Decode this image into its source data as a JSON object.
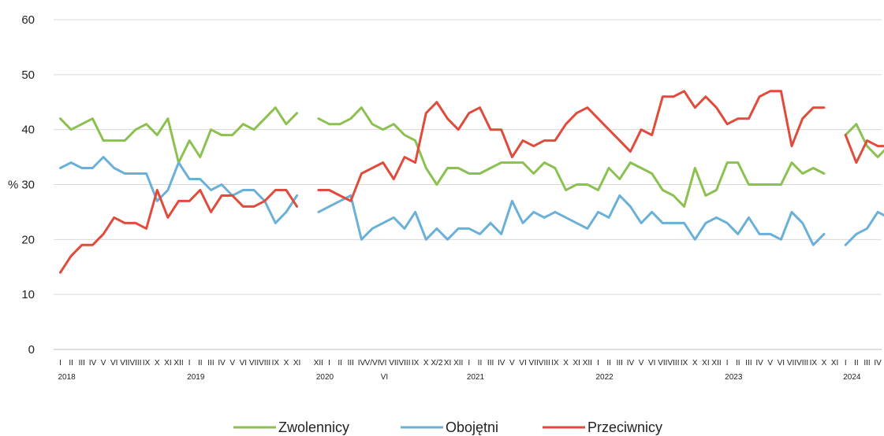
{
  "chart_data": {
    "type": "line",
    "ylabel": "%",
    "ylim": [
      0,
      60
    ],
    "yticks": [
      0,
      10,
      20,
      30,
      40,
      50,
      60
    ],
    "grid": "horizontal",
    "legend_position": "bottom",
    "x_tick_labels": [
      "I",
      "II",
      "III",
      "IV",
      "V",
      "VI",
      "VII",
      "VIII",
      "IX",
      "X",
      "XI",
      "XII",
      "I",
      "II",
      "III",
      "IV",
      "V",
      "VI",
      "VII",
      "VIII",
      "IX",
      "X",
      "XI",
      "XII",
      "I",
      "II",
      "III",
      "IV",
      "V/VI",
      "VI",
      "VII",
      "VIII",
      "IX",
      "X",
      "X/2",
      "XI",
      "XII",
      "I",
      "II",
      "III",
      "IV",
      "V",
      "VI",
      "VII",
      "VIII",
      "IX",
      "X",
      "XI",
      "XII",
      "I",
      "II",
      "III",
      "IV",
      "V",
      "VI",
      "VII",
      "VIII",
      "IX",
      "X",
      "XI",
      "XII",
      "I",
      "II",
      "III",
      "IV",
      "V",
      "VI",
      "VII",
      "VIII",
      "IX",
      "X",
      "XI",
      "I",
      "II",
      "III",
      "IV",
      "V",
      "VI",
      "VII"
    ],
    "x_year_labels": [
      {
        "label": "2018",
        "index": 0
      },
      {
        "label": "2019",
        "index": 12
      },
      {
        "label": "2020",
        "index": 23
      },
      {
        "label": "VI",
        "index": 29
      },
      {
        "label": "2021",
        "index": 37
      },
      {
        "label": "2022",
        "index": 49
      },
      {
        "label": "2023",
        "index": 61
      },
      {
        "label": "2024",
        "index": 72
      }
    ],
    "series": [
      {
        "name": "Zwolennicy",
        "color": "#8cc152",
        "segments": [
          [
            42,
            40,
            41,
            42,
            38,
            38,
            38,
            40,
            41,
            39,
            42,
            34,
            38,
            35,
            40,
            39,
            39,
            41,
            40,
            42,
            44,
            41,
            43
          ],
          [
            42,
            41,
            41,
            42,
            44,
            41,
            40,
            41,
            39,
            38,
            33,
            30,
            33,
            33,
            32,
            32,
            33,
            34,
            34,
            34,
            32,
            34,
            33,
            29,
            30,
            30,
            29,
            33,
            31,
            34,
            33,
            32,
            29,
            28,
            26,
            33,
            28,
            29,
            34,
            34,
            30,
            30,
            30,
            30,
            34,
            32,
            33,
            32
          ],
          [
            39,
            41,
            37,
            35,
            37,
            36,
            33
          ]
        ]
      },
      {
        "name": "Obojętni",
        "color": "#6ab0d8",
        "segments": [
          [
            33,
            34,
            33,
            33,
            35,
            33,
            32,
            32,
            32,
            27,
            29,
            34,
            31,
            31,
            29,
            30,
            28,
            29,
            29,
            27,
            23,
            25,
            28
          ],
          [
            25,
            26,
            27,
            28,
            20,
            22,
            23,
            24,
            22,
            25,
            20,
            22,
            20,
            22,
            22,
            21,
            23,
            21,
            27,
            23,
            25,
            24,
            25,
            24,
            23,
            22,
            25,
            24,
            28,
            26,
            23,
            25,
            23,
            23,
            23,
            20,
            23,
            24,
            23,
            21,
            24,
            21,
            21,
            20,
            25,
            23,
            19,
            21
          ],
          [
            19,
            21,
            22,
            25,
            24,
            26,
            24
          ]
        ]
      },
      {
        "name": "Przeciwnicy",
        "color": "#e04b3c",
        "segments": [
          [
            14,
            17,
            19,
            19,
            21,
            24,
            23,
            23,
            22,
            29,
            24,
            27,
            27,
            29,
            25,
            28,
            28,
            26,
            26,
            27,
            29,
            29,
            26
          ],
          [
            29,
            29,
            28,
            27,
            32,
            33,
            34,
            31,
            35,
            34,
            43,
            45,
            42,
            40,
            43,
            44,
            40,
            40,
            35,
            38,
            37,
            38,
            38,
            41,
            43,
            44,
            42,
            40,
            38,
            36,
            40,
            39,
            46,
            46,
            47,
            44,
            46,
            44,
            41,
            42,
            42,
            46,
            47,
            47,
            37,
            42,
            44,
            44
          ],
          [
            39,
            34,
            38,
            37,
            37,
            36,
            40
          ]
        ]
      }
    ]
  }
}
